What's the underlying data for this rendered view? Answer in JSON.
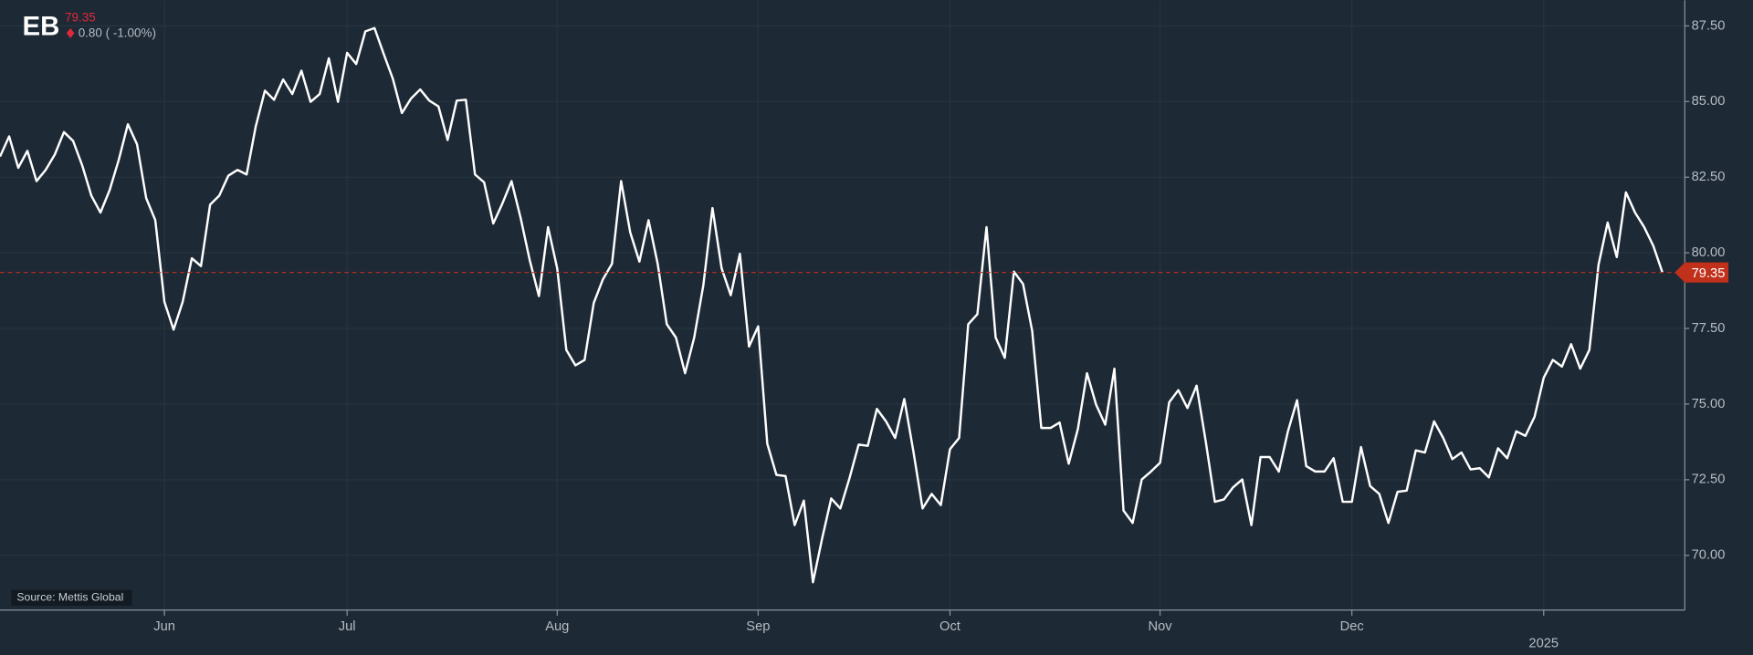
{
  "chart_data": {
    "type": "line",
    "title": "EB",
    "price_label": "79.35",
    "change_label": "0.80 ( -1.00%)",
    "source": "Source: Mettis Global",
    "color": "#ffffff",
    "reference_line": 79.35,
    "reference_color": "#c0301b",
    "grid": true,
    "ylim": [
      68.19,
      88.35
    ],
    "yticks": [
      {
        "value": 70,
        "label": "70.00"
      },
      {
        "value": 72.5,
        "label": "72.50"
      },
      {
        "value": 75,
        "label": "75.00"
      },
      {
        "value": 77.5,
        "label": "77.50"
      },
      {
        "value": 80,
        "label": "80.00"
      },
      {
        "value": 82.5,
        "label": "82.50"
      },
      {
        "value": 85,
        "label": "85.00"
      },
      {
        "value": 87.5,
        "label": "87.50"
      }
    ],
    "categories": [
      null,
      null,
      null,
      null,
      null,
      null,
      null,
      null,
      null,
      null,
      null,
      null,
      null,
      null,
      null,
      null,
      null,
      null,
      "Jun",
      null,
      null,
      null,
      null,
      null,
      null,
      null,
      null,
      null,
      null,
      null,
      null,
      null,
      null,
      null,
      null,
      null,
      null,
      null,
      "Jul",
      null,
      null,
      null,
      null,
      null,
      null,
      null,
      null,
      null,
      null,
      null,
      null,
      null,
      null,
      null,
      null,
      null,
      null,
      null,
      null,
      null,
      null,
      "Aug",
      null,
      null,
      null,
      null,
      null,
      null,
      null,
      null,
      null,
      null,
      null,
      null,
      null,
      null,
      null,
      null,
      null,
      null,
      null,
      null,
      null,
      "Sep",
      null,
      null,
      null,
      null,
      null,
      null,
      null,
      null,
      null,
      null,
      null,
      null,
      null,
      null,
      null,
      null,
      null,
      null,
      null,
      null,
      "Oct",
      null,
      null,
      null,
      null,
      null,
      null,
      null,
      null,
      null,
      null,
      null,
      null,
      null,
      null,
      null,
      null,
      null,
      null,
      null,
      null,
      null,
      null,
      "Nov",
      null,
      null,
      null,
      null,
      null,
      null,
      null,
      null,
      null,
      null,
      null,
      null,
      null,
      null,
      null,
      null,
      null,
      null,
      null,
      null,
      "Dec",
      null,
      null,
      null,
      null,
      null,
      null,
      null,
      null,
      null,
      null,
      null,
      null,
      null,
      null,
      null,
      null,
      null,
      null,
      null,
      null,
      "2025",
      null,
      null,
      null,
      null,
      null,
      null,
      null,
      null,
      null,
      null,
      null,
      null,
      null
    ],
    "values": [
      83.18,
      83.85,
      82.81,
      83.37,
      82.37,
      82.74,
      83.25,
      83.99,
      83.7,
      82.89,
      81.89,
      81.33,
      82.07,
      83.07,
      84.25,
      83.59,
      81.81,
      81.08,
      78.38,
      77.46,
      78.38,
      79.82,
      79.56,
      81.59,
      81.89,
      82.55,
      82.74,
      82.59,
      84.18,
      85.36,
      85.06,
      85.73,
      85.25,
      86.02,
      84.99,
      85.25,
      86.43,
      84.99,
      86.61,
      86.24,
      87.32,
      87.43,
      86.58,
      85.76,
      84.62,
      85.1,
      85.4,
      85.03,
      84.84,
      83.73,
      85.03,
      85.06,
      82.59,
      82.33,
      80.97,
      81.63,
      82.37,
      81.15,
      79.75,
      78.57,
      80.85,
      79.49,
      76.79,
      76.28,
      76.46,
      78.34,
      79.12,
      79.64,
      82.37,
      80.67,
      79.71,
      81.08,
      79.64,
      77.64,
      77.2,
      76.02,
      77.2,
      78.93,
      81.48,
      79.49,
      78.6,
      79.97,
      76.9,
      77.57,
      73.69,
      72.66,
      72.62,
      71.0,
      71.81,
      69.11,
      70.55,
      71.88,
      71.55,
      72.55,
      73.66,
      73.62,
      74.84,
      74.43,
      73.88,
      75.17,
      73.43,
      71.55,
      72.03,
      71.66,
      73.51,
      73.88,
      77.64,
      77.97,
      80.85,
      77.2,
      76.53,
      79.38,
      78.97,
      77.42,
      74.21,
      74.21,
      74.39,
      73.03,
      74.17,
      76.02,
      74.98,
      74.32,
      76.17,
      71.48,
      71.07,
      72.51,
      72.77,
      73.06,
      75.06,
      75.46,
      74.87,
      75.61,
      73.77,
      71.77,
      71.85,
      72.25,
      72.51,
      71.0,
      73.25,
      73.25,
      72.77,
      74.1,
      75.13,
      72.95,
      72.77,
      72.77,
      73.21,
      71.77,
      71.77,
      73.58,
      72.29,
      72.03,
      71.07,
      72.1,
      72.14,
      73.47,
      73.4,
      74.43,
      73.88,
      73.18,
      73.4,
      72.84,
      72.88,
      72.58,
      73.54,
      73.21,
      74.1,
      73.95,
      74.58,
      75.87,
      76.46,
      76.24,
      76.98,
      76.17,
      76.79,
      79.6,
      81.0,
      79.86,
      82.0,
      81.33,
      80.85,
      80.23,
      79.35
    ]
  }
}
